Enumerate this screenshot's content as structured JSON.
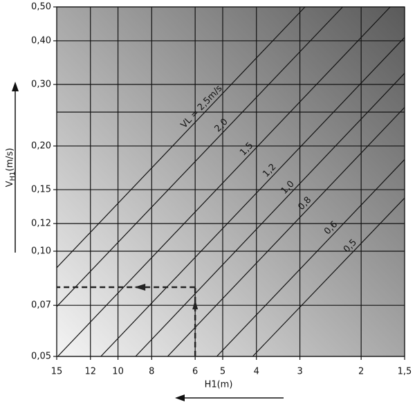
{
  "chart_data": {
    "type": "line",
    "x_label": "H1(m)",
    "y_label": {
      "main": "V",
      "sub": "H1",
      "unit": "(m/s)"
    },
    "log_x": true,
    "log_y": true,
    "x_reversed": true,
    "grid": true,
    "xlim": [
      15,
      1.5
    ],
    "xticks": [
      15,
      12,
      10,
      8,
      6,
      5,
      4,
      3,
      2,
      {
        "value": 1.5,
        "label": "1,5"
      }
    ],
    "ylim": [
      0.05,
      0.5
    ],
    "yticks": [
      {
        "value": 0.05,
        "label": "0,05"
      },
      {
        "value": 0.07,
        "label": "0,07"
      },
      {
        "value": 0.1,
        "label": "0,10"
      },
      {
        "value": 0.12,
        "label": "0,12"
      },
      {
        "value": 0.15,
        "label": "0,15"
      },
      {
        "value": 0.2,
        "label": "0,20"
      },
      {
        "value": 0.3,
        "label": "0,30"
      },
      {
        "value": 0.4,
        "label": "0,40"
      },
      {
        "value": 0.5,
        "label": "0,50"
      }
    ],
    "minor_ygrid": [
      0.25
    ],
    "color": "#111111",
    "series": [
      {
        "name": "VL = 2,5m/s",
        "x": [
          15,
          2.9
        ],
        "values": [
          0.0897,
          0.5
        ]
      },
      {
        "name": "2,0",
        "x": [
          15,
          2.26
        ],
        "values": [
          0.0694,
          0.5
        ]
      },
      {
        "name": "1,5",
        "x": [
          14.9,
          1.65
        ],
        "values": [
          0.05,
          0.5
        ]
      },
      {
        "name": "1,2",
        "x": [
          11.2,
          1.5
        ],
        "values": [
          0.05,
          0.409
        ]
      },
      {
        "name": "1,0",
        "x": [
          8.9,
          1.5
        ],
        "values": [
          0.05,
          0.323
        ]
      },
      {
        "name": "0,8",
        "x": [
          7.2,
          1.5
        ],
        "values": [
          0.05,
          0.258
        ]
      },
      {
        "name": "0,6",
        "x": [
          5.2,
          1.5
        ],
        "values": [
          0.05,
          0.183
        ]
      },
      {
        "name": "0,5",
        "x": [
          4.1,
          1.5
        ],
        "values": [
          0.05,
          0.142
        ]
      }
    ],
    "example_reading": {
      "x": 6.0,
      "y": 0.0789
    }
  }
}
